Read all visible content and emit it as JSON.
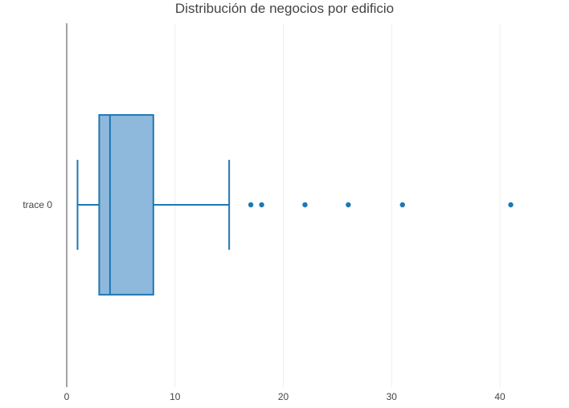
{
  "chart_data": {
    "type": "box",
    "title": "Distribución de negocios por edificio",
    "xlabel": "",
    "ylabel": "",
    "orientation": "horizontal",
    "xlim": [
      0,
      44.3
    ],
    "x_ticks": [
      0,
      10,
      20,
      30,
      40
    ],
    "grid": true,
    "series": [
      {
        "name": "trace 0",
        "whisker_low": 1,
        "q1": 3,
        "median": 4,
        "q3": 8,
        "whisker_high": 15,
        "outliers": [
          17,
          18,
          22,
          26,
          31,
          41
        ]
      }
    ],
    "colors": {
      "line": "#1f77b4",
      "fill": "#8fb9dc",
      "grid": "#eeeeee",
      "axis": "#444444",
      "text": "#444444"
    }
  }
}
